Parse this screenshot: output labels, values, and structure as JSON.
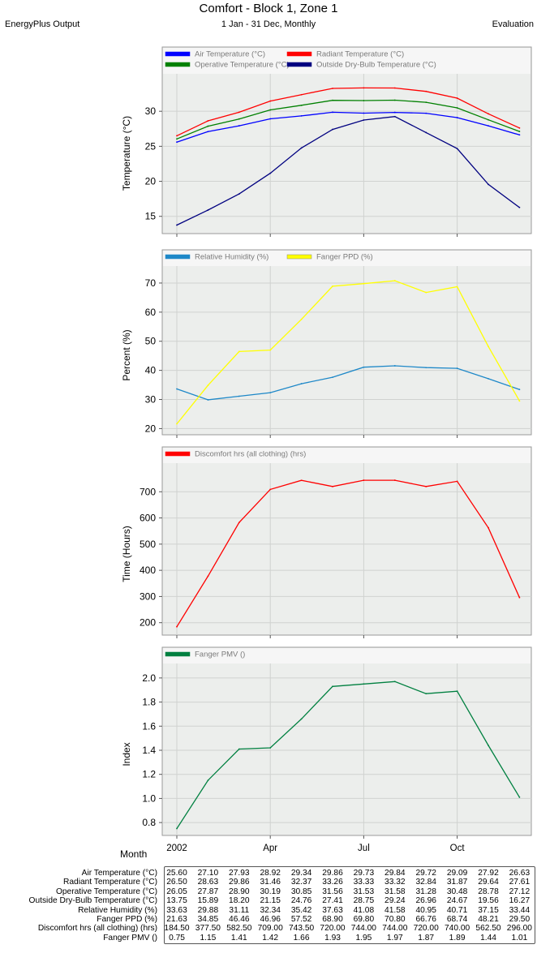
{
  "header": {
    "title": "Comfort - Block 1, Zone 1",
    "subtitle": "1 Jan - 31 Dec, Monthly",
    "left": "EnergyPlus Output",
    "right": "Evaluation"
  },
  "x_axis": {
    "label": "Month",
    "tick_labels": [
      "2002",
      "Apr",
      "Jul",
      "Oct"
    ],
    "tick_months": [
      1,
      4,
      7,
      10
    ]
  },
  "chart_data": [
    {
      "type": "line",
      "ylabel": "Temperature (°C)",
      "ylim": [
        13,
        35
      ],
      "yticks": [
        15,
        20,
        25,
        30
      ],
      "grid": true,
      "legend": "top",
      "series": [
        {
          "name": "Air Temperature (°C)",
          "color": "#0000ff",
          "values": [
            25.6,
            27.1,
            27.93,
            28.92,
            29.34,
            29.86,
            29.73,
            29.84,
            29.72,
            29.09,
            27.92,
            26.63
          ]
        },
        {
          "name": "Radiant Temperature (°C)",
          "color": "#ff0000",
          "values": [
            26.5,
            28.63,
            29.86,
            31.46,
            32.37,
            33.26,
            33.33,
            33.32,
            32.84,
            31.87,
            29.64,
            27.61
          ]
        },
        {
          "name": "Operative Temperature (°C)",
          "color": "#008000",
          "values": [
            26.05,
            27.87,
            28.9,
            30.19,
            30.85,
            31.56,
            31.53,
            31.58,
            31.28,
            30.48,
            28.78,
            27.12
          ]
        },
        {
          "name": "Outside Dry-Bulb Temperature (°C)",
          "color": "#000080",
          "values": [
            13.75,
            15.89,
            18.2,
            21.15,
            24.76,
            27.41,
            28.75,
            29.24,
            26.96,
            24.67,
            19.56,
            16.27
          ]
        }
      ]
    },
    {
      "type": "line",
      "ylabel": "Percent (%)",
      "ylim": [
        19,
        75
      ],
      "yticks": [
        20,
        30,
        40,
        50,
        60,
        70
      ],
      "grid": true,
      "legend": "top",
      "series": [
        {
          "name": "Relative Humidity (%)",
          "color": "#1e88c8",
          "values": [
            33.63,
            29.88,
            31.11,
            32.34,
            35.42,
            37.63,
            41.08,
            41.58,
            40.95,
            40.71,
            37.15,
            33.44
          ]
        },
        {
          "name": "Fanger PPD (%)",
          "color": "#ffff00",
          "values": [
            21.63,
            34.85,
            46.46,
            46.96,
            57.52,
            68.9,
            69.8,
            70.8,
            66.76,
            68.74,
            48.21,
            29.5
          ]
        }
      ]
    },
    {
      "type": "line",
      "ylabel": "Time (Hours)",
      "ylim": [
        165,
        800
      ],
      "yticks": [
        200,
        300,
        400,
        500,
        600,
        700
      ],
      "grid": true,
      "legend": "top",
      "series": [
        {
          "name": "Discomfort hrs (all clothing) (hrs)",
          "color": "#ff0000",
          "values": [
            184.5,
            377.5,
            582.5,
            709.0,
            743.5,
            720.0,
            744.0,
            744.0,
            720.0,
            740.0,
            562.5,
            296.0
          ]
        }
      ]
    },
    {
      "type": "line",
      "ylabel": "Index",
      "ylim": [
        0.72,
        2.1
      ],
      "yticks": [
        "0.8",
        "1.0",
        "1.2",
        "1.4",
        "1.6",
        "1.8",
        "2.0"
      ],
      "grid": true,
      "legend": "top",
      "series": [
        {
          "name": "Fanger PMV ()",
          "color": "#008040",
          "values": [
            0.75,
            1.15,
            1.41,
            1.42,
            1.66,
            1.93,
            1.95,
            1.97,
            1.87,
            1.89,
            1.44,
            1.01
          ]
        }
      ]
    }
  ],
  "table": {
    "rows": [
      {
        "label": "Air Temperature (°C)",
        "cells": [
          "25.60",
          "27.10",
          "27.93",
          "28.92",
          "29.34",
          "29.86",
          "29.73",
          "29.84",
          "29.72",
          "29.09",
          "27.92",
          "26.63"
        ]
      },
      {
        "label": "Radiant Temperature (°C)",
        "cells": [
          "26.50",
          "28.63",
          "29.86",
          "31.46",
          "32.37",
          "33.26",
          "33.33",
          "33.32",
          "32.84",
          "31.87",
          "29.64",
          "27.61"
        ]
      },
      {
        "label": "Operative Temperature (°C)",
        "cells": [
          "26.05",
          "27.87",
          "28.90",
          "30.19",
          "30.85",
          "31.56",
          "31.53",
          "31.58",
          "31.28",
          "30.48",
          "28.78",
          "27.12"
        ]
      },
      {
        "label": "Outside Dry-Bulb Temperature (°C)",
        "cells": [
          "13.75",
          "15.89",
          "18.20",
          "21.15",
          "24.76",
          "27.41",
          "28.75",
          "29.24",
          "26.96",
          "24.67",
          "19.56",
          "16.27"
        ]
      },
      {
        "label": "Relative Humidity (%)",
        "cells": [
          "33.63",
          "29.88",
          "31.11",
          "32.34",
          "35.42",
          "37.63",
          "41.08",
          "41.58",
          "40.95",
          "40.71",
          "37.15",
          "33.44"
        ]
      },
      {
        "label": "Fanger PPD (%)",
        "cells": [
          "21.63",
          "34.85",
          "46.46",
          "46.96",
          "57.52",
          "68.90",
          "69.80",
          "70.80",
          "66.76",
          "68.74",
          "48.21",
          "29.50"
        ]
      },
      {
        "label": "Discomfort hrs (all clothing) (hrs)",
        "cells": [
          "184.50",
          "377.50",
          "582.50",
          "709.00",
          "743.50",
          "720.00",
          "744.00",
          "744.00",
          "720.00",
          "740.00",
          "562.50",
          "296.00"
        ]
      },
      {
        "label": "Fanger PMV ()",
        "cells": [
          "0.75",
          "1.15",
          "1.41",
          "1.42",
          "1.66",
          "1.93",
          "1.95",
          "1.97",
          "1.87",
          "1.89",
          "1.44",
          "1.01"
        ]
      }
    ]
  }
}
